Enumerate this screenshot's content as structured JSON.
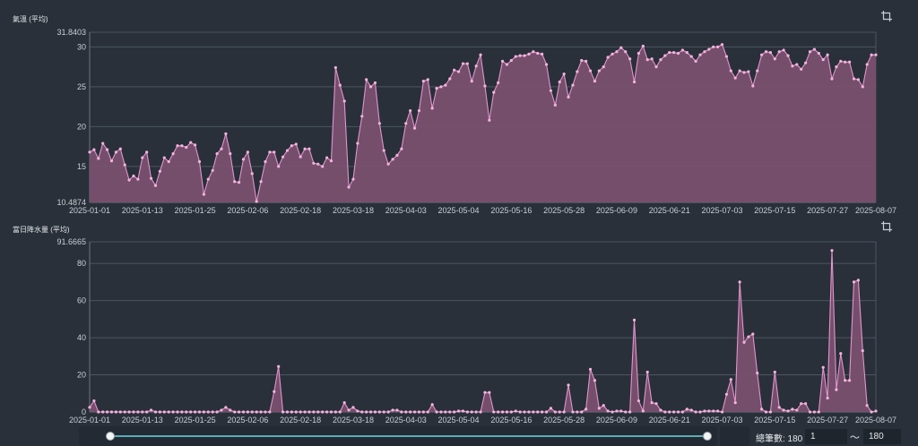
{
  "colors": {
    "background": "#29303a",
    "area_fill": "#79506f",
    "line": "#e294cc",
    "point": "#f2b4dd",
    "grid": "#4b5560",
    "axis": "#6b7580",
    "text": "#c9ced4",
    "slider_track": "#5aaeb7"
  },
  "icons": [
    "crop-icon",
    "crop-icon"
  ],
  "chart_data": [
    {
      "type": "area",
      "title": "氣溫 (平均)",
      "ylim": [
        10.4874,
        31.8403
      ],
      "y_ticks": [
        "10.4874",
        "15",
        "20",
        "25",
        "30",
        "31.8403"
      ],
      "x_ticks": [
        {
          "index": 0,
          "label": "2025-01-01"
        },
        {
          "index": 12,
          "label": "2025-01-13"
        },
        {
          "index": 24,
          "label": "2025-01-25"
        },
        {
          "index": 36,
          "label": "2025-02-06"
        },
        {
          "index": 48,
          "label": "2025-02-18"
        },
        {
          "index": 60,
          "label": "2025-03-18"
        },
        {
          "index": 72,
          "label": "2025-04-03"
        },
        {
          "index": 84,
          "label": "2025-05-04"
        },
        {
          "index": 96,
          "label": "2025-05-16"
        },
        {
          "index": 108,
          "label": "2025-05-28"
        },
        {
          "index": 120,
          "label": "2025-06-09"
        },
        {
          "index": 132,
          "label": "2025-06-21"
        },
        {
          "index": 144,
          "label": "2025-07-03"
        },
        {
          "index": 156,
          "label": "2025-07-15"
        },
        {
          "index": 168,
          "label": "2025-07-27"
        },
        {
          "index": 179,
          "label": "2025-08-07"
        }
      ],
      "values": [
        16.8,
        17.1,
        16.0,
        17.9,
        17.1,
        15.7,
        16.8,
        17.2,
        15.2,
        13.3,
        13.8,
        13.4,
        16.1,
        16.8,
        13.5,
        12.6,
        14.4,
        16.1,
        15.6,
        16.6,
        17.6,
        17.6,
        17.4,
        18.0,
        17.7,
        15.6,
        11.5,
        13.4,
        14.5,
        16.6,
        17.2,
        19.1,
        16.6,
        13.1,
        13.0,
        15.9,
        16.8,
        14.1,
        10.6,
        13.1,
        15.6,
        16.8,
        16.8,
        15.0,
        16.2,
        17.0,
        17.6,
        17.8,
        16.2,
        17.2,
        17.2,
        15.4,
        15.3,
        15.0,
        16.1,
        15.7,
        27.4,
        25.2,
        23.2,
        12.4,
        13.4,
        17.9,
        21.3,
        25.9,
        25.0,
        25.5,
        20.4,
        17.0,
        15.3,
        15.9,
        16.4,
        17.2,
        20.4,
        22.0,
        19.8,
        22.0,
        25.7,
        25.9,
        22.3,
        24.8,
        25.0,
        25.2,
        26.0,
        27.1,
        26.9,
        27.9,
        27.9,
        25.7,
        27.6,
        29.0,
        25.1,
        20.8,
        24.3,
        25.5,
        28.2,
        27.8,
        28.3,
        28.8,
        28.9,
        28.9,
        29.1,
        29.4,
        29.2,
        29.1,
        27.8,
        24.5,
        22.7,
        25.6,
        26.6,
        23.7,
        25.2,
        26.9,
        28.3,
        28.2,
        27.0,
        25.7,
        27.0,
        27.5,
        28.7,
        29.1,
        29.4,
        29.9,
        29.4,
        28.5,
        25.6,
        29.2,
        30.1,
        28.4,
        28.5,
        27.5,
        28.4,
        28.9,
        29.3,
        29.3,
        29.2,
        29.6,
        29.3,
        28.8,
        28.2,
        29.0,
        29.4,
        29.7,
        30.0,
        30.0,
        30.3,
        28.8,
        27.0,
        26.1,
        27.0,
        26.8,
        26.9,
        25.1,
        27.0,
        29.0,
        29.4,
        29.3,
        28.5,
        29.4,
        29.6,
        28.9,
        27.6,
        27.8,
        27.2,
        28.0,
        29.4,
        29.7,
        29.2,
        28.4,
        29.0,
        26.0,
        27.5,
        28.2,
        28.1,
        28.1,
        26.0,
        25.9,
        25.0,
        27.8,
        29.0,
        29.0
      ]
    },
    {
      "type": "area",
      "title": "當日降水量 (平均)",
      "ylim": [
        0,
        91.6665
      ],
      "y_ticks": [
        "0",
        "20",
        "40",
        "60",
        "80",
        "91.6665"
      ],
      "x_ticks": [
        {
          "index": 0,
          "label": "2025-01-01"
        },
        {
          "index": 12,
          "label": "2025-01-13"
        },
        {
          "index": 24,
          "label": "2025-01-25"
        },
        {
          "index": 36,
          "label": "2025-02-06"
        },
        {
          "index": 48,
          "label": "2025-02-18"
        },
        {
          "index": 60,
          "label": "2025-03-18"
        },
        {
          "index": 72,
          "label": "2025-04-03"
        },
        {
          "index": 84,
          "label": "2025-05-04"
        },
        {
          "index": 96,
          "label": "2025-05-16"
        },
        {
          "index": 108,
          "label": "2025-05-28"
        },
        {
          "index": 120,
          "label": "2025-06-09"
        },
        {
          "index": 132,
          "label": "2025-06-21"
        },
        {
          "index": 144,
          "label": "2025-07-03"
        },
        {
          "index": 156,
          "label": "2025-07-15"
        },
        {
          "index": 168,
          "label": "2025-07-27"
        },
        {
          "index": 179,
          "label": "2025-08-07"
        }
      ],
      "values": [
        2.5,
        6,
        0,
        0,
        0,
        0,
        0,
        0,
        0,
        0,
        0,
        0,
        0,
        0,
        1,
        0,
        0,
        0,
        0,
        0,
        0,
        0,
        0,
        0,
        0,
        0,
        0,
        0,
        0,
        0,
        1,
        2.5,
        1,
        0,
        0,
        0,
        0,
        0,
        0,
        0,
        0,
        0,
        11,
        24.5,
        0,
        0,
        0,
        0,
        0,
        0,
        0,
        0,
        0,
        0,
        0,
        0,
        0,
        0,
        5,
        1,
        2.5,
        0.5,
        0,
        0,
        0,
        0,
        0,
        0,
        0,
        1,
        1,
        0,
        0,
        0,
        0,
        0,
        0,
        0,
        4,
        0,
        0,
        0,
        0,
        0,
        0.5,
        0.5,
        0,
        0,
        0,
        0,
        10.5,
        10.5,
        0,
        0,
        0,
        0,
        0,
        0.5,
        0,
        0,
        0,
        0,
        0,
        0,
        0,
        2,
        0,
        0,
        0,
        14.5,
        0,
        0,
        0,
        1.5,
        23,
        17,
        2,
        3.5,
        0.5,
        0,
        0.5,
        0.5,
        0,
        0,
        49.5,
        6,
        0.5,
        21.5,
        5,
        4.5,
        1,
        0,
        0,
        0,
        0,
        0,
        1.5,
        1,
        0,
        0,
        0.5,
        0.5,
        0.5,
        0.5,
        0,
        9.5,
        17.5,
        5,
        70,
        37.5,
        40.5,
        42,
        21,
        1.5,
        0,
        0,
        21.5,
        2.5,
        1,
        0.5,
        1.5,
        1,
        4.5,
        4.5,
        0,
        0,
        0,
        24,
        7.5,
        87,
        12,
        31.5,
        17,
        17,
        70,
        71,
        33,
        3.5,
        0,
        0.5
      ]
    }
  ],
  "slider": {
    "min": 1,
    "max": 180,
    "start": 1,
    "end": 180
  },
  "footer": {
    "total_label": "總筆數: 180",
    "range_start": "1",
    "range_sep": "～",
    "range_end": "180"
  }
}
